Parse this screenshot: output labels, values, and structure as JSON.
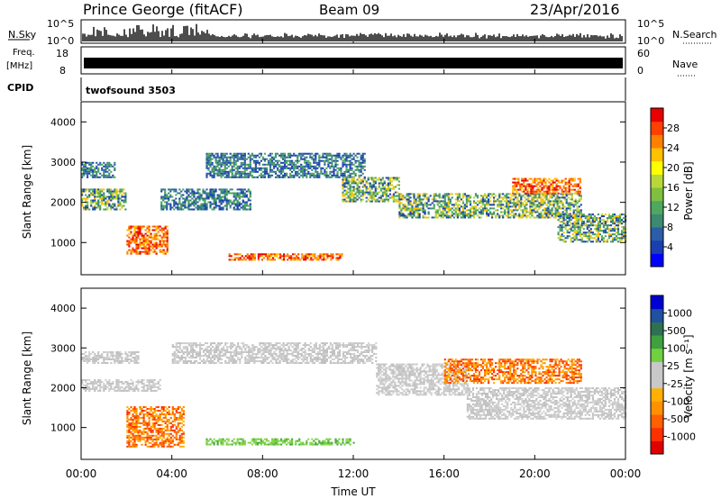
{
  "header": {
    "station": "Prince George (fitACF)",
    "beam": "Beam 09",
    "date": "23/Apr/2016"
  },
  "strips": {
    "nsky": {
      "left_label": "N.Sky",
      "right_label": "N.Search",
      "top_tick": "10^5",
      "bottom_tick": "10^0",
      "right_top_tick": "10^5",
      "right_bottom_tick": "10^0"
    },
    "freq": {
      "left_label_line1": "Freq.",
      "left_label_line2": "[MHz]",
      "right_label": "Nave",
      "top_tick": "18",
      "bottom_tick": "8",
      "right_top_tick": "60",
      "right_bottom_tick": "0"
    },
    "cpid": {
      "left_label": "CPID",
      "program": "twofsound 3503"
    }
  },
  "chart_data": [
    {
      "type": "heatmap",
      "title": "",
      "ylabel": "Slant Range [km]",
      "xlabel": "",
      "ylim": [
        200,
        4500
      ],
      "yticks": [
        1000,
        2000,
        3000,
        4000
      ],
      "xlim": [
        0,
        24
      ],
      "colorbar": {
        "label": "Power [dB]",
        "ticks": [
          "28",
          "24",
          "20",
          "16",
          "12",
          "8",
          "4"
        ],
        "colors": [
          "#0000ff",
          "#1a3fb0",
          "#2b5da8",
          "#3c8a70",
          "#4ea860",
          "#7fc040",
          "#b8d83a",
          "#ffff00",
          "#ffc000",
          "#ff8000",
          "#ff4000",
          "#e80000"
        ]
      },
      "regions": [
        {
          "t": [
            0.0,
            1.5
          ],
          "range": [
            2600,
            3000
          ],
          "level": "low"
        },
        {
          "t": [
            0.0,
            2.0
          ],
          "range": [
            1800,
            2300
          ],
          "level": "medium"
        },
        {
          "t": [
            2.0,
            3.8
          ],
          "range": [
            700,
            1400
          ],
          "level": "high"
        },
        {
          "t": [
            3.5,
            7.5
          ],
          "range": [
            1800,
            2300
          ],
          "level": "low"
        },
        {
          "t": [
            5.5,
            12.5
          ],
          "range": [
            2600,
            3200
          ],
          "level": "low"
        },
        {
          "t": [
            6.5,
            11.5
          ],
          "range": [
            550,
            700
          ],
          "level": "high"
        },
        {
          "t": [
            11.5,
            14.0
          ],
          "range": [
            2000,
            2600
          ],
          "level": "medium"
        },
        {
          "t": [
            14.0,
            22.0
          ],
          "range": [
            1600,
            2200
          ],
          "level": "medium"
        },
        {
          "t": [
            19.0,
            22.0
          ],
          "range": [
            2200,
            2600
          ],
          "level": "high"
        },
        {
          "t": [
            21.0,
            24.0
          ],
          "range": [
            1000,
            1700
          ],
          "level": "medium"
        }
      ]
    },
    {
      "type": "heatmap",
      "title": "",
      "ylabel": "Slant Range [km]",
      "xlabel": "Time UT",
      "ylim": [
        200,
        4500
      ],
      "yticks": [
        1000,
        2000,
        3000,
        4000
      ],
      "xlim": [
        0,
        24
      ],
      "xticks": [
        "00:00",
        "04:00",
        "08:00",
        "12:00",
        "16:00",
        "20:00",
        "00:00"
      ],
      "colorbar": {
        "label": "Velocity [m s⁻¹]",
        "ticks": [
          "1000",
          "500",
          "100",
          "25",
          "-25",
          "-100",
          "-500",
          "-1000"
        ],
        "colors": [
          "#e00000",
          "#ff3000",
          "#ff6000",
          "#ff9000",
          "#ffb000",
          "#c8c8c8",
          "#c8c8c8",
          "#70d040",
          "#3fa03f",
          "#2e7050",
          "#2050a0",
          "#0000d0"
        ]
      },
      "regions": [
        {
          "t": [
            0.0,
            2.5
          ],
          "range": [
            2600,
            2900
          ],
          "level": "ground"
        },
        {
          "t": [
            0.0,
            3.5
          ],
          "range": [
            1900,
            2200
          ],
          "level": "ground"
        },
        {
          "t": [
            2.0,
            4.5
          ],
          "range": [
            500,
            1500
          ],
          "level": "negative"
        },
        {
          "t": [
            4.0,
            13.0
          ],
          "range": [
            2600,
            3100
          ],
          "level": "ground"
        },
        {
          "t": [
            5.5,
            12.0
          ],
          "range": [
            550,
            700
          ],
          "level": "positive"
        },
        {
          "t": [
            13.0,
            17.0
          ],
          "range": [
            1800,
            2600
          ],
          "level": "ground"
        },
        {
          "t": [
            16.0,
            22.0
          ],
          "range": [
            2100,
            2700
          ],
          "level": "negative"
        },
        {
          "t": [
            17.0,
            24.0
          ],
          "range": [
            1200,
            2000
          ],
          "level": "ground"
        }
      ]
    }
  ]
}
